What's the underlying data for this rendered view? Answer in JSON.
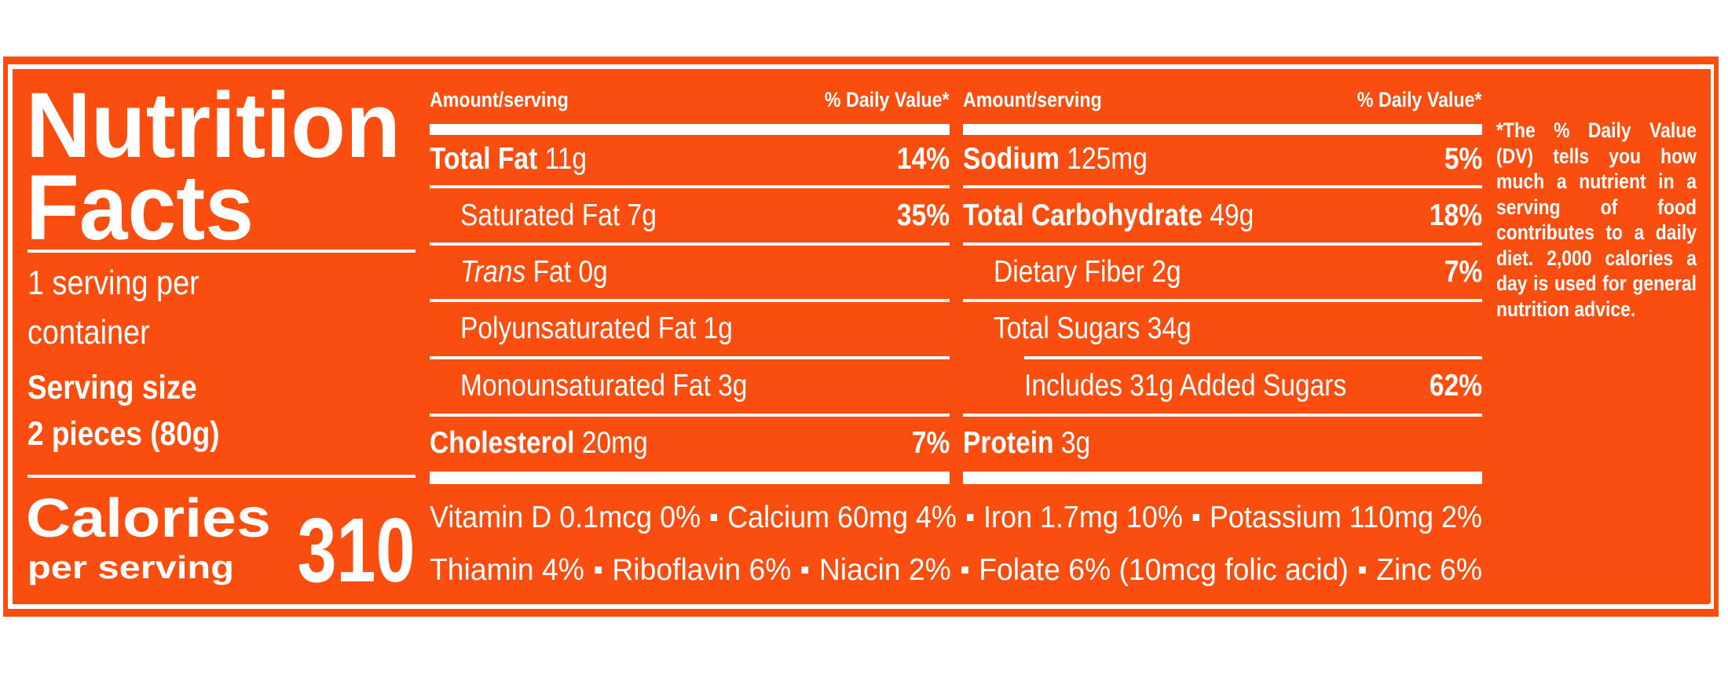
{
  "colors": {
    "background": "#F94E0F",
    "text": "#FFFFFF"
  },
  "title": {
    "line1": "Nutrition",
    "line2": "Facts"
  },
  "servings": {
    "line1": "1 serving per",
    "line2": "container"
  },
  "serving_size": {
    "label": "Serving size",
    "value": "2 pieces (80g)"
  },
  "calories": {
    "label": "Calories",
    "sublabel": "per serving",
    "value": "310"
  },
  "columns": [
    {
      "header_amount": "Amount/serving",
      "header_dv": "% Daily Value*",
      "rows": [
        {
          "name": "Total Fat",
          "amount": " 11g",
          "dv": "14%",
          "bold": true,
          "level": 0
        },
        {
          "name": "Saturated Fat",
          "amount": " 7g",
          "dv": "35%",
          "bold": false,
          "level": 1
        },
        {
          "name_em": "Trans",
          "name": " Fat",
          "amount": " 0g",
          "dv": "",
          "bold": false,
          "level": 1
        },
        {
          "name": "Polyunsaturated Fat",
          "amount": " 1g",
          "dv": "",
          "bold": false,
          "level": 1
        },
        {
          "name": "Monounsaturated Fat",
          "amount": " 3g",
          "dv": "",
          "bold": false,
          "level": 1
        },
        {
          "name": "Cholesterol",
          "amount": " 20mg",
          "dv": "7%",
          "bold": true,
          "level": 0
        }
      ]
    },
    {
      "header_amount": "Amount/serving",
      "header_dv": "% Daily Value*",
      "rows": [
        {
          "name": "Sodium",
          "amount": " 125mg",
          "dv": "5%",
          "bold": true,
          "level": 0
        },
        {
          "name": "Total Carbohydrate",
          "amount": " 49g",
          "dv": "18%",
          "bold": true,
          "level": 0
        },
        {
          "name": "Dietary Fiber",
          "amount": " 2g",
          "dv": "7%",
          "bold": false,
          "level": 1
        },
        {
          "name": "Total Sugars",
          "amount": " 34g",
          "dv": "",
          "bold": false,
          "level": 1
        },
        {
          "name": "Includes 31g Added Sugars",
          "amount": "",
          "dv": "62%",
          "bold": false,
          "level": 2
        },
        {
          "name": "Protein",
          "amount": " 3g",
          "dv": "",
          "bold": true,
          "level": 0
        }
      ]
    }
  ],
  "vitamins": [
    [
      "Vitamin D 0.1mcg 0%",
      "Calcium 60mg 4%",
      "Iron 1.7mg 10%",
      "Potassium 110mg 2%"
    ],
    [
      "Thiamin 4%",
      "Riboflavin 6%",
      "Niacin 2%",
      "Folate 6% (10mcg folic acid)",
      "Zinc 6%"
    ]
  ],
  "footnote": "*The % Daily Value (DV) tells you how much a nutrient in a serving of food contributes to a daily diet. 2,000 calories a day is used for general nutrition advice."
}
